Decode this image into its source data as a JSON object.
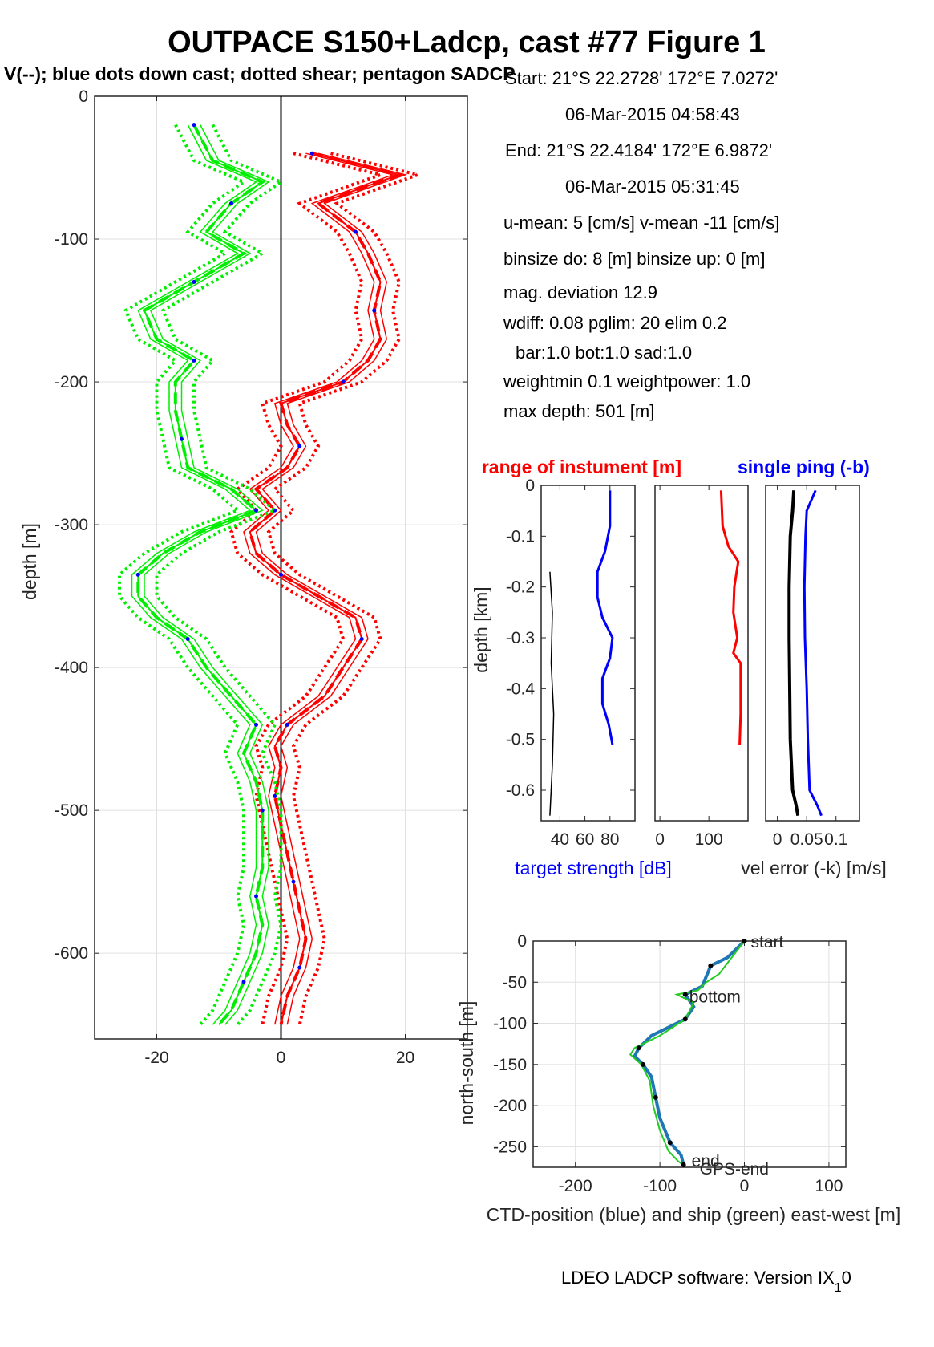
{
  "title": "OUTPACE S150+Ladcp, cast #77  Figure 1",
  "subtitle": "V(--); blue dots down cast; dotted shear; pentagon SADCP",
  "info": [
    "Start:  21°S 22.2728'     172°E  7.0272'",
    "06-Mar-2015 04:58:43",
    "End:   21°S 22.4184'     172°E  6.9872'",
    "06-Mar-2015 05:31:45",
    "u-mean:   5 [cm/s]    v-mean -11 [cm/s]",
    "binsize do: 8 [m]  binsize up:  0 [m]",
    "mag. deviation 12.9",
    "wdiff: 0.08  pglim: 20  elim 0.2",
    "bar:1.0 bot:1.0 sad:1.0",
    "weightmin 0.1  weightpower: 1.0",
    "max depth: 501 [m]"
  ],
  "footer": "LDEO LADCP software: Version IX",
  "footer_sub": "1",
  "footer_end": "0",
  "colors": {
    "u": "#ff0000",
    "v": "#00ee00",
    "dots": "#0000ff",
    "ts": "#0000ff",
    "ship": "#22cc22",
    "ctd": "#1f77b4"
  },
  "chart_data": [
    {
      "type": "line",
      "name": "velocity profile",
      "ylabel": "depth [m]",
      "xlim": [
        -30,
        30
      ],
      "ylim": [
        -660,
        0
      ],
      "xticks": [
        -20,
        0,
        20
      ],
      "yticks": [
        0,
        -100,
        -200,
        -300,
        -400,
        -500,
        -600
      ],
      "grid": true,
      "series": [
        {
          "color": "red",
          "depth": [
            -40,
            -55,
            -75,
            -95,
            -110,
            -130,
            -150,
            -170,
            -185,
            -200,
            -215,
            -230,
            -245,
            -260,
            -275,
            -290,
            -305,
            -320,
            -335,
            -350,
            -365,
            -380,
            -400,
            -420,
            -440,
            -455,
            -470,
            -490,
            -510,
            -530,
            -550,
            -570,
            -590,
            -610,
            -630,
            -650
          ],
          "values": [
            5,
            19,
            6,
            12,
            14,
            16,
            15,
            16,
            14,
            10,
            0,
            1,
            3,
            1,
            -4,
            -1,
            -5,
            -4,
            0,
            6,
            12,
            13,
            10,
            7,
            1,
            -1,
            0,
            -1,
            0,
            1,
            2,
            3,
            4,
            3,
            1,
            0
          ]
        },
        {
          "color": "green",
          "depth": [
            -20,
            -45,
            -60,
            -75,
            -95,
            -110,
            -130,
            -150,
            -170,
            -185,
            -200,
            -220,
            -240,
            -260,
            -275,
            -290,
            -305,
            -320,
            -335,
            -350,
            -365,
            -380,
            -400,
            -420,
            -440,
            -460,
            -480,
            -500,
            -520,
            -540,
            -560,
            -580,
            -600,
            -620,
            -640,
            -650
          ],
          "values": [
            -14,
            -11,
            -3,
            -8,
            -12,
            -6,
            -14,
            -22,
            -20,
            -14,
            -17,
            -17,
            -16,
            -15,
            -8,
            -4,
            -13,
            -19,
            -23,
            -23,
            -20,
            -15,
            -12,
            -8,
            -4,
            -6,
            -4,
            -3,
            -3,
            -3,
            -4,
            -3,
            -4,
            -6,
            -8,
            -10
          ]
        }
      ]
    },
    {
      "type": "line",
      "name": "target strength",
      "ylabel": "depth [km]",
      "xlabel": "target strength [dB]",
      "xlim": [
        25,
        100
      ],
      "ylim": [
        -0.66,
        0
      ],
      "xticks": [
        40,
        60,
        80
      ],
      "yticks": [
        0,
        -0.1,
        -0.2,
        -0.3,
        -0.4,
        -0.5,
        -0.6
      ],
      "series": [
        {
          "color": "blue",
          "depth": [
            -0.01,
            -0.08,
            -0.13,
            -0.17,
            -0.22,
            -0.26,
            -0.3,
            -0.34,
            -0.38,
            -0.43,
            -0.47,
            -0.51
          ],
          "values": [
            80,
            80,
            76,
            70,
            70,
            74,
            82,
            80,
            74,
            74,
            79,
            82
          ]
        },
        {
          "color": "black",
          "depth": [
            -0.17,
            -0.25,
            -0.35,
            -0.45,
            -0.55,
            -0.65
          ],
          "values": [
            32,
            34,
            33,
            35,
            34,
            32
          ]
        }
      ]
    },
    {
      "type": "line",
      "name": "range of instrument",
      "title": "range of instument [m]",
      "xlim": [
        -10,
        180
      ],
      "ylim": [
        -0.66,
        0
      ],
      "xticks": [
        0,
        100
      ],
      "series": [
        {
          "color": "red",
          "depth": [
            -0.01,
            -0.08,
            -0.12,
            -0.15,
            -0.2,
            -0.25,
            -0.3,
            -0.33,
            -0.35,
            -0.45,
            -0.51
          ],
          "values": [
            125,
            128,
            140,
            160,
            152,
            150,
            158,
            150,
            165,
            165,
            163
          ]
        }
      ]
    },
    {
      "type": "line",
      "name": "velocity error",
      "title": "single ping (-b)",
      "xlabel": "vel error (-k) [m/s]",
      "xlim": [
        -0.02,
        0.14
      ],
      "ylim": [
        -0.66,
        0
      ],
      "xticks": [
        0,
        0.05,
        0.1
      ],
      "tick_labels": [
        "0",
        "0.05",
        "0.1"
      ],
      "series": [
        {
          "color": "black",
          "depth": [
            -0.01,
            -0.05,
            -0.1,
            -0.2,
            -0.3,
            -0.4,
            -0.5,
            -0.6,
            -0.63,
            -0.65
          ],
          "values": [
            0.028,
            0.026,
            0.022,
            0.02,
            0.02,
            0.021,
            0.022,
            0.026,
            0.032,
            0.035
          ]
        },
        {
          "color": "blue",
          "depth": [
            -0.01,
            -0.05,
            -0.1,
            -0.2,
            -0.3,
            -0.4,
            -0.5,
            -0.6,
            -0.63,
            -0.65
          ],
          "values": [
            0.065,
            0.05,
            0.048,
            0.046,
            0.047,
            0.05,
            0.052,
            0.055,
            0.068,
            0.075
          ]
        }
      ]
    },
    {
      "type": "line",
      "name": "position track",
      "xlabel": "CTD-position (blue) and ship (green) east-west [m]",
      "ylabel": "north-south [m]",
      "xlim": [
        -250,
        120
      ],
      "ylim": [
        -275,
        0
      ],
      "xticks": [
        -200,
        -100,
        0,
        100
      ],
      "yticks": [
        0,
        -50,
        -100,
        -150,
        -200,
        -250
      ],
      "annotations": [
        "start",
        "bottom",
        "end",
        "GPS-end"
      ],
      "series": [
        {
          "color": "blue",
          "name": "CTD",
          "x": [
            0,
            -20,
            -40,
            -50,
            -70,
            -60,
            -70,
            -110,
            -125,
            -130,
            -120,
            -110,
            -105,
            -100,
            -88,
            -75,
            -72
          ],
          "y": [
            0,
            -20,
            -30,
            -55,
            -65,
            -80,
            -95,
            -115,
            -130,
            -140,
            -150,
            -165,
            -190,
            -215,
            -245,
            -260,
            -272
          ]
        },
        {
          "color": "green",
          "name": "ship",
          "x": [
            0,
            -15,
            -30,
            -45,
            -55,
            -80,
            -60,
            -70,
            -100,
            -130,
            -135,
            -122,
            -112,
            -108,
            -100,
            -90,
            -78,
            -72
          ],
          "y": [
            0,
            -20,
            -40,
            -50,
            -60,
            -65,
            -75,
            -95,
            -115,
            -130,
            -138,
            -150,
            -170,
            -200,
            -230,
            -255,
            -268,
            -272
          ]
        }
      ]
    }
  ]
}
